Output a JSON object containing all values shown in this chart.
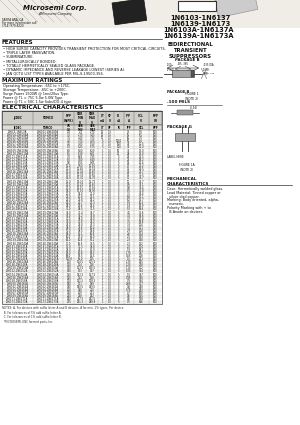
{
  "title_lines": [
    "1N6103-1N6137",
    "1N6139-1N6173",
    "1N6103A-1N6137A",
    "1N6139A-1N6173A"
  ],
  "company": "Microsemi Corp.",
  "jans_label": "*JANS*",
  "subtitle": "BIDIRECTIONAL\nTRANSIENT\nSUPPRESSORS",
  "features_title": "FEATURES",
  "features": [
    "HIGH SURGE CAPACITY PROVIDES TRANSIENT PROTECTION FOR MOST CRITICAL CIRCUITS.",
    "TRIPLE LAYER PASSIVATION.",
    "SUBMINIATURE.",
    "METALLURGICALLY BONDED.",
    "TOTALLY HERMETICALLY SEALED GLASS PACKAGE.",
    "DYNAMIC IMPEDANCE AND REVERSE LEAKAGE LOWEST (SERIES A).",
    "JAN QCTU LIST TYPES AVAILABLE PER MIL-S-19500-356."
  ],
  "max_ratings_title": "MAXIMUM RATINGS",
  "max_ratings": [
    "Operating Temperature: -65C to +175C.",
    "Storage Temperature: -65C to +200C.",
    "Surge Power 1500W @ 1ms/20us Type.",
    "Power @ TL = 75C 5.0w 5.0W Type.",
    "Power @ TL = 50C 1.5w Subs/DO-4 type."
  ],
  "elec_char_title": "ELECTRICAL CHARACTERISTICS",
  "col_headers_line1": [
    "JEDEC",
    "TOMCO",
    "PEAK\nPULSE\nPOWER\nDISSI-\nPATION\nW(PK)",
    "VBR\nBREAK-\nDOWN\nVOLTAGE\nMIN",
    "VBR\nBREAK-\nDOWN\nVOLTAGE\nMAX",
    "IT\nmA",
    "VF\nMAX\nV",
    "IR\nMAX\nuA",
    "IPP\nAMP",
    "VCL\nCLAMP\nVOLTAGE\nMAX",
    "PPP\nWATTS"
  ],
  "subheaders": [
    "JEDEC",
    "TOMCO",
    "VR\n(V)",
    "VBR\nMIN\n(V)",
    "VBR\nMAX\n(V)",
    "IT\n(mA)",
    "VF\nV",
    "IR\nuA",
    "IPP\nA",
    "VCL\n(V)",
    "PPP\nW"
  ],
  "table_data": [
    [
      "1N6C3-1N6C3A",
      "1N6103-1N6103A",
      "2.5",
      "2.1",
      "2.75",
      "10",
      "1.5",
      "",
      "75",
      "5.5",
      "500"
    ],
    [
      "1N6104-1N6104A",
      "1N6104-1N6104A",
      "3.0",
      "2.75",
      "3.25",
      "10",
      "1.5",
      "",
      "65",
      "6.5",
      "500"
    ],
    [
      "1N6105-1N6105A",
      "1N6105-1N6105A",
      "3.5",
      "3.25",
      "3.75",
      "10",
      "1.5",
      "",
      "60",
      "7.0",
      "500"
    ],
    [
      "1N6106-1N6106A",
      "1N6106-1N6106A",
      "4.0",
      "3.75",
      "4.25",
      "5",
      "1.5",
      "1000",
      "50",
      "9.1",
      "500"
    ],
    [
      "1N6107-1N6107A",
      "1N6107-1N6107A",
      "4.5",
      "4.25",
      "5.50",
      "5",
      "1.5",
      "500",
      "42",
      "11.5",
      "500"
    ],
    [
      "1N6108-1N6108A",
      "1N6108-1N6108A",
      "5.0",
      "5.25",
      "5.75",
      "5",
      "1.5",
      "100",
      "36",
      "12.0",
      "500"
    ],
    [
      "1N6109-1N6109A",
      "1N6109-1N6109A",
      "6.0",
      "5.60",
      "6.20",
      "1",
      "1.0",
      "50",
      "32",
      "13.0",
      "500"
    ],
    [
      "1N6110-1N6110A",
      "1N6110-1N6110A",
      "6.5",
      "6.19",
      "6.81",
      "1",
      "1.0",
      "20",
      "28",
      "14.0",
      "500"
    ],
    [
      "1N6111-1N6111A",
      "1N6111-1N6111A",
      "7.0",
      "6.65",
      "7.35",
      "1",
      "1.0",
      "5",
      "26",
      "15.5",
      "500"
    ],
    [
      "1N6112-1N6112A",
      "1N6112-1N6112A",
      "8.0",
      "7.60",
      "8.40",
      "1",
      "1.0",
      "5",
      "22",
      "18.2",
      "500"
    ],
    [
      "1N6113-1N6113A",
      "1N6113-1N6113A",
      "9.0",
      "8.55",
      "9.45",
      "1",
      "1.0",
      "5",
      "19",
      "20.4",
      "500"
    ],
    [
      "1N6114-1N6114A",
      "1N6114-1N6114A",
      "10.0",
      "9.50",
      "10.50",
      "1",
      "1.0",
      "5",
      "17",
      "23.2",
      "500"
    ],
    [
      "1N6115-1N6115A",
      "1N6115-1N6115A",
      "11.0",
      "10.45",
      "11.55",
      "1",
      "1.0",
      "5",
      "15",
      "25.5",
      "500"
    ],
    [
      "1N6116-1N6116A",
      "1N6116-1N6116A",
      "12.0",
      "11.40",
      "12.60",
      "1",
      "1.0",
      "5",
      "14",
      "27.7",
      "500"
    ],
    [
      "1N6117-1N6117A",
      "1N6117-1N6117A",
      "13.0",
      "12.35",
      "13.65",
      "1",
      "1.0",
      "5",
      "12",
      "30.3",
      "500"
    ],
    [
      "1N6118-1N6118A",
      "1N6118-1N6118A",
      "14.0",
      "13.30",
      "14.70",
      "1",
      "1.0",
      "5",
      "11",
      "32.7",
      "500"
    ],
    [
      "1N6119-1N6119A",
      "1N6119-1N6119A",
      "15.0",
      "14.25",
      "15.75",
      "1",
      "1.0",
      "5",
      "10",
      "34.7",
      "500"
    ],
    [
      "1N6120-1N6120A",
      "1N6120-1N6120A",
      "16.0",
      "15.20",
      "16.80",
      "1",
      "1.0",
      "5",
      "9.5",
      "37.1",
      "500"
    ],
    [
      "1N6121-1N6121A",
      "1N6121-1N6121A",
      "17.0",
      "16.15",
      "17.85",
      "1",
      "1.0",
      "5",
      "9.0",
      "39.4",
      "500"
    ],
    [
      "1N6122-1N6122A",
      "1N6122-1N6122A",
      "18.0",
      "17.10",
      "18.90",
      "1",
      "1.0",
      "5",
      "8.5",
      "41.8",
      "500"
    ],
    [
      "1N6123-1N6123A",
      "1N6123-1N6123A",
      "20.0",
      "19.0",
      "21.0",
      "1",
      "1.0",
      "5",
      "7.5",
      "46.4",
      "500"
    ],
    [
      "1N6124-1N6124A",
      "1N6124-1N6124A",
      "22.0",
      "20.9",
      "23.1",
      "1",
      "1.0",
      "5",
      "6.8",
      "51.1",
      "500"
    ],
    [
      "1N6125-1N6125A",
      "1N6125-1N6125A",
      "24.0",
      "22.8",
      "25.2",
      "1",
      "1.0",
      "5",
      "6.2",
      "55.7",
      "500"
    ],
    [
      "1N6126-1N6126A",
      "1N6126-1N6126A",
      "26.0",
      "24.7",
      "27.3",
      "1",
      "1.0",
      "5",
      "5.8",
      "60.3",
      "500"
    ],
    [
      "1N6127-1N6127A",
      "1N6127-1N6127A",
      "28.0",
      "26.6",
      "29.4",
      "1",
      "1.0",
      "5",
      "5.4",
      "64.9",
      "500"
    ],
    [
      "1N6128-1N6128A",
      "1N6128-1N6128A",
      "30.0",
      "28.5",
      "31.5",
      "1",
      "1.0",
      "5",
      "5.0",
      "69.6",
      "500"
    ],
    [
      "1N6129-1N6129A",
      "1N6129-1N6129A",
      "33.0",
      "31.4",
      "34.7",
      "1",
      "1.0",
      "5",
      "4.5",
      "76.6",
      "500"
    ],
    [
      "1N6130-1N6130A",
      "1N6130-1N6130A",
      "36.0",
      "34.2",
      "37.8",
      "1",
      "1.0",
      "5",
      "4.2",
      "83.6",
      "500"
    ],
    [
      "1N6131-1N6131A",
      "1N6131-1N6131A",
      "40.0",
      "38.0",
      "42.0",
      "1",
      "1.0",
      "5",
      "3.7",
      "92.8",
      "500"
    ],
    [
      "1N6132-1N6132A",
      "1N6132-1N6132A",
      "43.0",
      "40.9",
      "45.2",
      "1",
      "1.0",
      "5",
      "3.5",
      "99.8",
      "500"
    ],
    [
      "1N6133-1N6133A",
      "1N6133-1N6133A",
      "45.0",
      "42.8",
      "47.3",
      "1",
      "1.0",
      "5",
      "3.3",
      "104",
      "500"
    ],
    [
      "1N6134-1N6134A",
      "1N6134-1N6134A",
      "48.0",
      "45.6",
      "50.4",
      "1",
      "1.0",
      "5",
      "3.1",
      "111",
      "500"
    ],
    [
      "1N6135-1N6135A",
      "1N6135-1N6135A",
      "51.0",
      "48.5",
      "53.6",
      "1",
      "1.0",
      "5",
      "2.9",
      "118",
      "500"
    ],
    [
      "1N6136-1N6136A",
      "1N6136-1N6136A",
      "58.0",
      "55.1",
      "60.9",
      "1",
      "1.0",
      "5",
      "2.6",
      "134",
      "500"
    ],
    [
      "1N6137-1N6137A",
      "1N6137-1N6137A",
      "60.0",
      "57.0",
      "63.0",
      "1",
      "1.0",
      "5",
      "2.5",
      "139",
      "500"
    ],
    [
      "1N6139-1N6139A",
      "1N6139-1N6139A",
      "64.0",
      "60.8",
      "67.2",
      "1",
      "1.0",
      "5",
      "2.3",
      "148",
      "500"
    ],
    [
      "1N6140-1N6140A",
      "1N6140-1N6140A",
      "70.0",
      "66.5",
      "73.5",
      "1",
      "1.0",
      "5",
      "2.1",
      "162",
      "500"
    ],
    [
      "1N6141-1N6141A",
      "1N6141-1N6141A",
      "75.0",
      "71.3",
      "78.8",
      "1",
      "1.0",
      "5",
      "2.0",
      "174",
      "500"
    ],
    [
      "1N6142-1N6142A",
      "1N6142-1N6142A",
      "78.0",
      "74.1",
      "81.9",
      "1",
      "1.0",
      "5",
      "1.9",
      "181",
      "500"
    ],
    [
      "1N6143-1N6143A",
      "1N6143-1N6143A",
      "85.0",
      "80.8",
      "89.3",
      "1",
      "1.0",
      "5",
      "1.75",
      "197",
      "500"
    ],
    [
      "1N6144-1N6144A",
      "1N6144-1N6144A",
      "90.0",
      "85.5",
      "94.5",
      "1",
      "1.0",
      "5",
      "1.65",
      "208",
      "500"
    ],
    [
      "1N6145-1N6145A",
      "1N6145-1N6145A",
      "100.0",
      "95.0",
      "105",
      "1",
      "1.0",
      "5",
      "1.5",
      "231",
      "500"
    ],
    [
      "1N6146-1N6146A",
      "1N6146-1N6146A",
      "110",
      "104.5",
      "115.5",
      "1",
      "1.0",
      "5",
      "1.35",
      "255",
      "500"
    ],
    [
      "1N6148-1N6148A",
      "1N6148-1N6148A",
      "120",
      "114",
      "126",
      "1",
      "1.0",
      "5",
      "1.25",
      "278",
      "500"
    ],
    [
      "1N6150-1N6150A",
      "1N6150-1N6150A",
      "130",
      "123.5",
      "136.5",
      "1",
      "1.0",
      "5",
      "1.15",
      "302",
      "500"
    ],
    [
      "1N6152-1N6152A",
      "1N6152-1N6152A",
      "140",
      "133",
      "147",
      "1",
      "1.0",
      "5",
      "1.05",
      "324",
      "500"
    ],
    [
      "1N6154-1N6154A",
      "1N6154-1N6154A",
      "150",
      "142.5",
      "157.5",
      "1",
      "1.0",
      "5",
      "1.0",
      "347",
      "500"
    ],
    [
      "1N6156-1N6156A",
      "1N6156-1N6156A",
      "160",
      "152",
      "168",
      "1",
      "1.0",
      "5",
      "0.95",
      "370",
      "500"
    ],
    [
      "1N6158-1N6158A",
      "1N6158-1N6158A",
      "170",
      "161.5",
      "178.5",
      "1",
      "1.0",
      "5",
      "0.9",
      "394",
      "500"
    ],
    [
      "1N6160-1N6160A",
      "1N6160-1N6160A",
      "180",
      "171",
      "189",
      "1",
      "1.0",
      "5",
      "0.85",
      "417",
      "500"
    ],
    [
      "1N6162-1N6162A",
      "1N6162-1N6162A",
      "190",
      "180.5",
      "199.5",
      "1",
      "1.0",
      "5",
      "0.8",
      "440",
      "500"
    ],
    [
      "1N6164-1N6164A",
      "1N6164-1N6164A",
      "200",
      "190",
      "210",
      "1",
      "1.0",
      "5",
      "0.75",
      "463",
      "500"
    ],
    [
      "1N6167-1N6167A",
      "1N6167-1N6167A",
      "220",
      "209",
      "231",
      "1",
      "1.0",
      "5",
      "0.7",
      "509",
      "500"
    ],
    [
      "1N6169-1N6169A",
      "1N6169-1N6169A",
      "240",
      "228",
      "252",
      "1",
      "1.0",
      "5",
      "0.6",
      "555",
      "500"
    ],
    [
      "1N6171-1N6171A",
      "1N6171-1N6171A",
      "250",
      "237.5",
      "262.5",
      "1",
      "1.0",
      "5",
      "0.6",
      "578",
      "500"
    ],
    [
      "1N6173-1N6173A",
      "1N6173-1N6173A",
      "275",
      "261.3",
      "288.8",
      "1",
      "1.0",
      "5",
      "0.5",
      "636",
      "500"
    ]
  ],
  "notes_text": "NOTES: A. For devices with suffix letter A and B devices, A for min. 1% types. Per device.\n  B. For tolerances of 5% add suffix letter A.\n  C. For tolerances of 1% add suffix letter B.\n  *MICROSEMI, ENC formed parts, Inc.",
  "mech_char_title": "MECHANICAL\nCHARACTERISTICS",
  "mech_char": [
    "Case: Hermetically welded glass.",
    "Lead Material: Tinned copper or",
    "  silver clad copper.",
    "Marking: Body oriented, alpha-",
    "  numeric.",
    "Polarity Marking with + to",
    "  B Anode on devices."
  ],
  "bg_color": "#f2efe9"
}
